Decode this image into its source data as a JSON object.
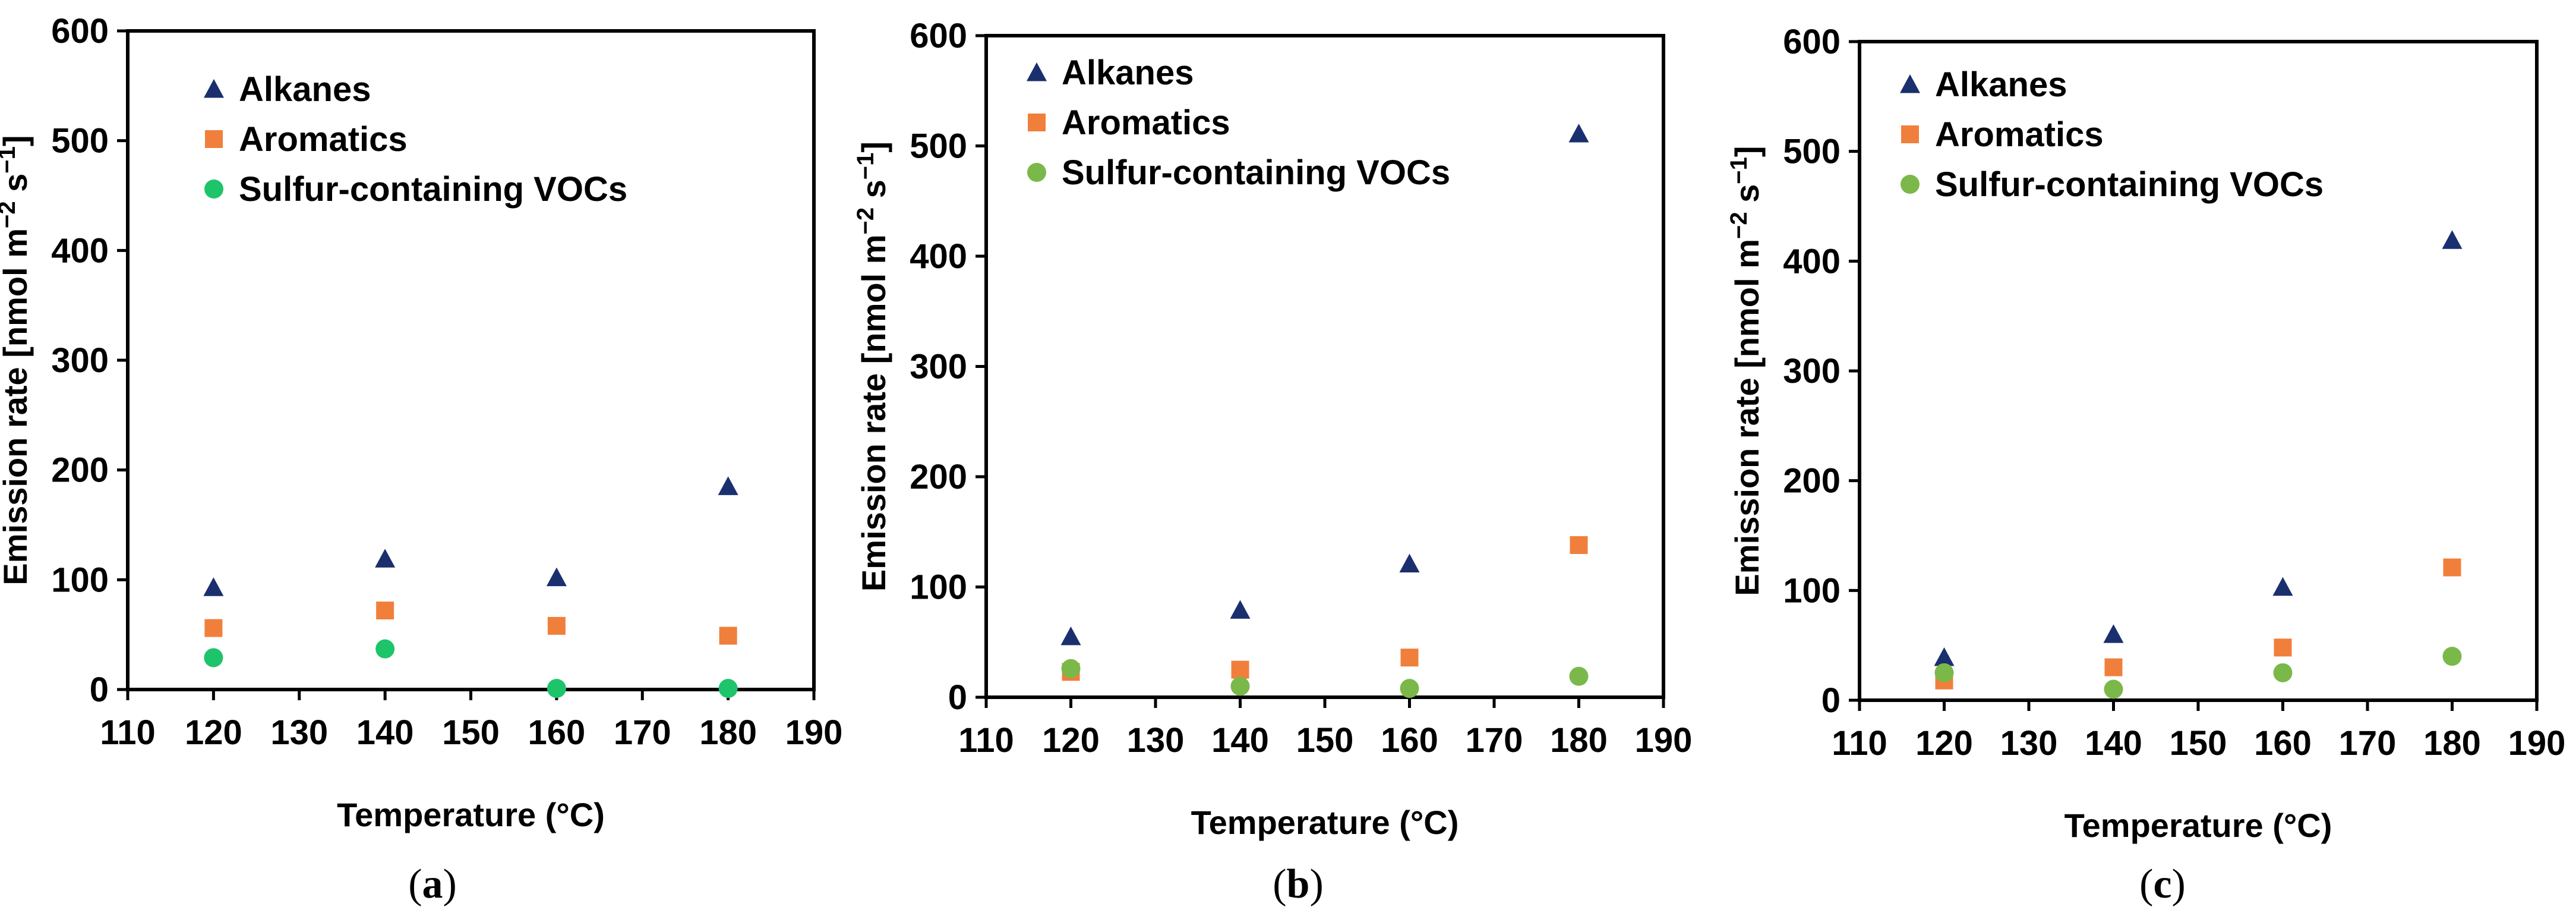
{
  "colors": {
    "alkanes": "#1a2f6e",
    "aromatics": "#f07f3c",
    "sulfur_a": "#1ec46a",
    "sulfur_bc": "#7bb84a"
  },
  "chart_data": [
    {
      "type": "scatter",
      "panel_label": "a",
      "xlabel": "Temperature (°C)",
      "ylabel_parts": [
        "Emission rate [nmol m",
        "−2",
        " s",
        "−1",
        "]"
      ],
      "xlim": [
        110,
        190
      ],
      "ylim": [
        0,
        600
      ],
      "xticks": [
        "110",
        "120",
        "130",
        "140",
        "150",
        "160",
        "170",
        "180",
        "190"
      ],
      "yticks": [
        "0",
        "100",
        "200",
        "300",
        "400",
        "500",
        "600"
      ],
      "series": [
        {
          "name": "Alkanes",
          "marker": "triangle",
          "color_key": "alkanes",
          "x": [
            120,
            140,
            160,
            180
          ],
          "y": [
            93,
            119,
            102,
            185
          ]
        },
        {
          "name": "Aromatics",
          "marker": "square",
          "color_key": "aromatics",
          "x": [
            120,
            140,
            160,
            180
          ],
          "y": [
            56,
            72,
            58,
            49
          ]
        },
        {
          "name": "Sulfur-containing VOCs",
          "marker": "circle",
          "color_key": "sulfur_a",
          "x": [
            120,
            140,
            160,
            180
          ],
          "y": [
            29,
            37,
            1,
            1
          ]
        }
      ]
    },
    {
      "type": "scatter",
      "panel_label": "b",
      "xlabel": "Temperature (°C)",
      "ylabel_parts": [
        "Emission rate [nmol m",
        "−2",
        " s",
        "−1",
        "]"
      ],
      "xlim": [
        110,
        190
      ],
      "ylim": [
        0,
        600
      ],
      "xticks": [
        "110",
        "120",
        "130",
        "140",
        "150",
        "160",
        "170",
        "180",
        "190"
      ],
      "yticks": [
        "0",
        "100",
        "200",
        "300",
        "400",
        "500",
        "600"
      ],
      "series": [
        {
          "name": "Alkanes",
          "marker": "triangle",
          "color_key": "alkanes",
          "x": [
            120,
            140,
            160,
            180
          ],
          "y": [
            55,
            79,
            121,
            511
          ]
        },
        {
          "name": "Aromatics",
          "marker": "square",
          "color_key": "aromatics",
          "x": [
            120,
            140,
            160,
            180
          ],
          "y": [
            23,
            25,
            36,
            138
          ]
        },
        {
          "name": "Sulfur-containing VOCs",
          "marker": "circle",
          "color_key": "sulfur_bc",
          "x": [
            120,
            140,
            160,
            180
          ],
          "y": [
            26,
            10,
            8,
            19
          ]
        }
      ]
    },
    {
      "type": "scatter",
      "panel_label": "c",
      "xlabel": "Temperature (°C)",
      "ylabel_parts": [
        "Emission rate [nmol m",
        "−2",
        " s",
        "−1",
        "]"
      ],
      "xlim": [
        110,
        190
      ],
      "ylim": [
        0,
        600
      ],
      "xticks": [
        "110",
        "120",
        "130",
        "140",
        "150",
        "160",
        "170",
        "180",
        "190"
      ],
      "yticks": [
        "0",
        "100",
        "200",
        "300",
        "400",
        "500",
        "600"
      ],
      "series": [
        {
          "name": "Alkanes",
          "marker": "triangle",
          "color_key": "alkanes",
          "x": [
            120,
            140,
            160,
            180
          ],
          "y": [
            39,
            60,
            103,
            419
          ]
        },
        {
          "name": "Aromatics",
          "marker": "square",
          "color_key": "aromatics",
          "x": [
            120,
            140,
            160,
            180
          ],
          "y": [
            18,
            30,
            48,
            121
          ]
        },
        {
          "name": "Sulfur-containing VOCs",
          "marker": "circle",
          "color_key": "sulfur_bc",
          "x": [
            120,
            140,
            160,
            180
          ],
          "y": [
            25,
            10,
            25,
            40
          ]
        }
      ]
    }
  ]
}
